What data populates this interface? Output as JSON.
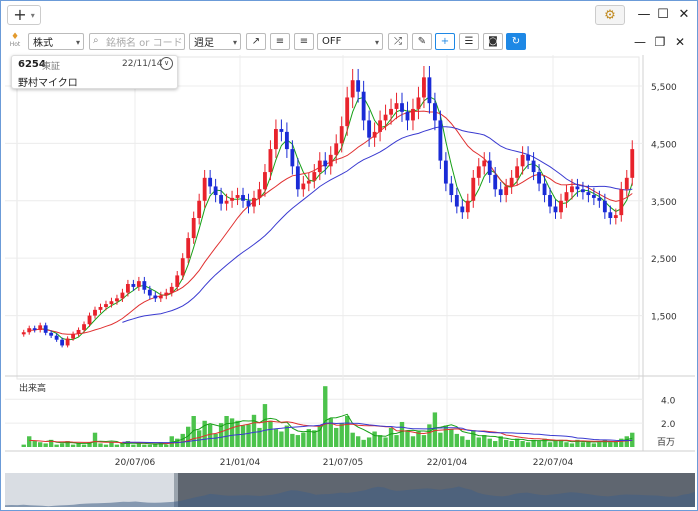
{
  "titlebar": {
    "add_label": "+",
    "minimize": "—",
    "maximize": "☐",
    "close": "✕"
  },
  "toolbar": {
    "brand": "Hot",
    "market_select": "株式",
    "search_placeholder": "銘柄名 or コード",
    "period_select": "週足",
    "indicator_select": "OFF"
  },
  "info": {
    "code": "6254",
    "market": "東証",
    "date": "22/11/14",
    "name": "野村マイクロ"
  },
  "chart_data": {
    "type": "candlestick",
    "price_axis_labels": [
      "5,500",
      "4,500",
      "3,500",
      "2,500",
      "1,500"
    ],
    "price_range": [
      500,
      5900
    ],
    "volume_label": "出来高",
    "volume_axis_labels": [
      "4.0",
      "2.0"
    ],
    "volume_unit": "百万",
    "volume_range": [
      0,
      5.2
    ],
    "x_labels": [
      "20/07/06",
      "21/01/04",
      "21/07/05",
      "22/01/04",
      "22/07/04"
    ],
    "colors": {
      "up": "#e8232c",
      "down": "#1a2bd6",
      "ma_short": "#17a017",
      "ma_mid": "#e03030",
      "ma_long": "#3a3ad0",
      "volume": "#4cc34c"
    },
    "close_series": [
      1210,
      1280,
      1250,
      1330,
      1200,
      1150,
      1080,
      980,
      1100,
      1180,
      1250,
      1350,
      1500,
      1600,
      1650,
      1700,
      1750,
      1800,
      1900,
      2050,
      2000,
      2100,
      1950,
      1850,
      1800,
      1850,
      1900,
      2000,
      2200,
      2500,
      2850,
      3200,
      3500,
      3900,
      3750,
      3600,
      3450,
      3500,
      3550,
      3600,
      3500,
      3400,
      3550,
      3700,
      4000,
      4400,
      4750,
      4700,
      4400,
      4100,
      3700,
      3800,
      3850,
      4000,
      4200,
      4100,
      4300,
      4500,
      4800,
      5300,
      5600,
      5400,
      4900,
      4600,
      4700,
      4900,
      5000,
      5100,
      5200,
      5050,
      4900,
      5100,
      5300,
      5650,
      5200,
      4900,
      4200,
      3800,
      3600,
      3400,
      3300,
      3500,
      3900,
      4100,
      4200,
      3950,
      3700,
      3600,
      3750,
      3900,
      4100,
      4300,
      4200,
      4000,
      3800,
      3600,
      3400,
      3300,
      3500,
      3650,
      3750,
      3700,
      3650,
      3600,
      3550,
      3500,
      3300,
      3200,
      3250,
      3700,
      3900,
      4400
    ],
    "volume_series": [
      0.2,
      0.9,
      0.5,
      0.4,
      0.3,
      0.6,
      0.2,
      0.3,
      0.5,
      0.2,
      0.3,
      0.2,
      0.4,
      1.2,
      0.3,
      0.2,
      0.4,
      0.2,
      0.3,
      0.5,
      0.2,
      0.3,
      0.2,
      0.2,
      0.3,
      0.4,
      0.2,
      0.9,
      0.7,
      1.1,
      1.7,
      2.6,
      1.4,
      2.2,
      1.9,
      1.1,
      2.0,
      2.6,
      2.4,
      2.2,
      1.8,
      1.9,
      2.7,
      1.6,
      3.6,
      2.2,
      1.5,
      1.3,
      1.8,
      1.1,
      1.0,
      1.2,
      1.5,
      1.4,
      1.8,
      5.1,
      2.4,
      1.6,
      2.0,
      2.6,
      1.2,
      0.9,
      0.6,
      0.8,
      1.3,
      1.0,
      0.8,
      1.6,
      1.0,
      2.1,
      1.4,
      0.9,
      1.3,
      1.0,
      1.9,
      2.9,
      1.2,
      1.8,
      1.5,
      1.1,
      0.9,
      0.6,
      1.4,
      0.8,
      1.0,
      0.7,
      0.5,
      0.9,
      0.6,
      0.5,
      0.7,
      0.5,
      0.4,
      0.6,
      0.5,
      0.7,
      0.4,
      0.5,
      0.6,
      0.4,
      0.3,
      0.6,
      0.4,
      0.5,
      0.3,
      0.4,
      0.6,
      0.4,
      0.5,
      0.7,
      0.9,
      1.2
    ]
  }
}
